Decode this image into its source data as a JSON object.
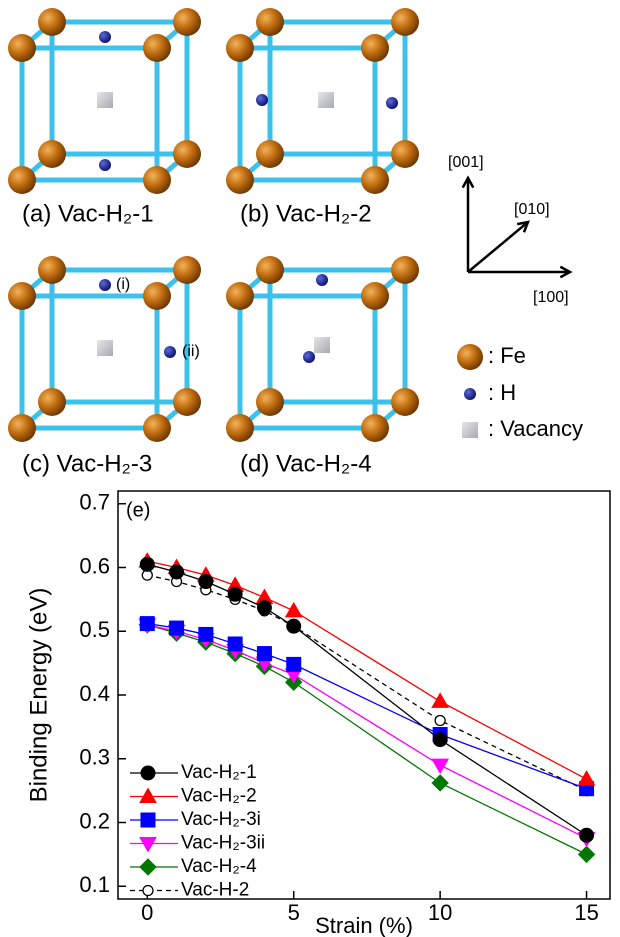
{
  "diagram": {
    "panels": [
      "(a) Vac-H₂-1",
      "(b) Vac-H₂-2",
      "(c) Vac-H₂-3",
      "(d) Vac-H₂-4"
    ],
    "site_labels": [
      "(i)",
      "(ii)"
    ],
    "directions": [
      "[001]",
      "[010]",
      "[100]"
    ],
    "legend": [
      ": Fe",
      ": H",
      ": Vacancy"
    ]
  },
  "chart_data": {
    "type": "line",
    "panel_label": "(e)",
    "x_label": "Strain (%)",
    "y_label": "Binding Energy (eV)",
    "x": [
      0,
      1,
      2,
      3,
      4,
      5,
      10,
      15
    ],
    "xlim": [
      -1,
      15.8
    ],
    "xticks": [
      0,
      5,
      10,
      15
    ],
    "ylim": [
      0.08,
      0.72
    ],
    "yticks": [
      0.1,
      0.2,
      0.3,
      0.4,
      0.5,
      0.6,
      0.7
    ],
    "legend": "lower left",
    "series": [
      {
        "name": "Vac-H₂-1",
        "color": "#000000",
        "marker": "circle",
        "values": [
          0.605,
          0.593,
          0.578,
          0.558,
          0.537,
          0.508,
          0.33,
          0.18
        ]
      },
      {
        "name": "Vac-H₂-2",
        "color": "#ff0000",
        "marker": "triangle-up",
        "values": [
          0.61,
          0.6,
          0.588,
          0.572,
          0.553,
          0.532,
          0.39,
          0.268
        ]
      },
      {
        "name": "Vac-H₂-3i",
        "color": "#0000ff",
        "marker": "square",
        "values": [
          0.512,
          0.505,
          0.495,
          0.48,
          0.465,
          0.448,
          0.338,
          0.253
        ]
      },
      {
        "name": "Vac-H₂-3ii",
        "color": "#ff00ff",
        "marker": "triangle-down",
        "values": [
          0.51,
          0.5,
          0.487,
          0.47,
          0.45,
          0.432,
          0.29,
          0.175
        ]
      },
      {
        "name": "Vac-H₂-4",
        "color": "#007700",
        "marker": "diamond",
        "values": [
          0.51,
          0.497,
          0.483,
          0.465,
          0.445,
          0.42,
          0.262,
          0.15
        ]
      },
      {
        "name": "Vac-H-2",
        "color": "#000000",
        "marker": "open-circle",
        "dashed": true,
        "values": [
          0.588,
          0.578,
          0.565,
          0.55,
          0.532,
          0.508,
          0.36,
          0.25
        ]
      }
    ]
  }
}
